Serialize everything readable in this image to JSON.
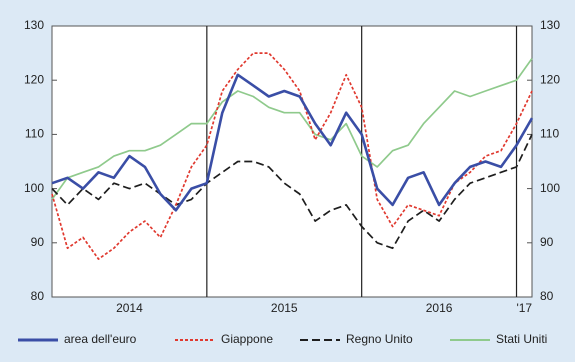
{
  "chart_data": {
    "type": "line",
    "x": [
      2014.0,
      2014.1,
      2014.2,
      2014.3,
      2014.4,
      2014.5,
      2014.6,
      2014.7,
      2014.8,
      2014.9,
      2015.0,
      2015.1,
      2015.2,
      2015.3,
      2015.4,
      2015.5,
      2015.6,
      2015.7,
      2015.8,
      2015.9,
      2016.0,
      2016.1,
      2016.2,
      2016.3,
      2016.4,
      2016.5,
      2016.6,
      2016.7,
      2016.8,
      2016.9,
      2017.0,
      2017.1
    ],
    "xlim": [
      2014.0,
      2017.1
    ],
    "xticks": [
      2015,
      2016,
      2017
    ],
    "year_labels": [
      "2014",
      "2015",
      "2016",
      "'17"
    ],
    "ylim": [
      80,
      130
    ],
    "yticks": [
      80,
      90,
      100,
      110,
      120,
      130
    ],
    "y2lim": [
      80,
      130
    ],
    "y2ticks": [
      80,
      90,
      100,
      110,
      120,
      130
    ],
    "series": [
      {
        "name": "area dell'euro",
        "color": "#3a4ea6",
        "dash": "solid",
        "values": [
          101,
          102,
          100,
          103,
          102,
          106,
          104,
          99,
          96,
          100,
          101,
          114,
          121,
          119,
          117,
          118,
          117,
          112,
          108,
          114,
          110,
          100,
          97,
          102,
          103,
          97,
          101,
          104,
          105,
          104,
          108,
          113
        ]
      },
      {
        "name": "Giappone",
        "color": "#e0392f",
        "dash": "dotted",
        "values": [
          99,
          89,
          91,
          87,
          89,
          92,
          94,
          91,
          97,
          104,
          108,
          118,
          122,
          125,
          125,
          122,
          118,
          109,
          114,
          121,
          115,
          98,
          93,
          97,
          96,
          95,
          101,
          103,
          106,
          107,
          112,
          118
        ]
      },
      {
        "name": "Regno Unito",
        "color": "#1e1e1e",
        "dash": "dashed",
        "values": [
          100,
          97,
          100,
          98,
          101,
          100,
          101,
          99,
          97,
          98,
          101,
          103,
          105,
          105,
          104,
          101,
          99,
          94,
          96,
          97,
          93,
          90,
          89,
          94,
          96,
          94,
          98,
          101,
          102,
          103,
          104,
          110
        ]
      },
      {
        "name": "Stati Uniti",
        "color": "#8fca8c",
        "dash": "solid",
        "values": [
          98,
          102,
          103,
          104,
          106,
          107,
          107,
          108,
          110,
          112,
          112,
          116,
          118,
          117,
          115,
          114,
          114,
          110,
          109,
          112,
          106,
          104,
          107,
          108,
          112,
          115,
          118,
          117,
          118,
          119,
          120,
          124
        ]
      }
    ]
  }
}
